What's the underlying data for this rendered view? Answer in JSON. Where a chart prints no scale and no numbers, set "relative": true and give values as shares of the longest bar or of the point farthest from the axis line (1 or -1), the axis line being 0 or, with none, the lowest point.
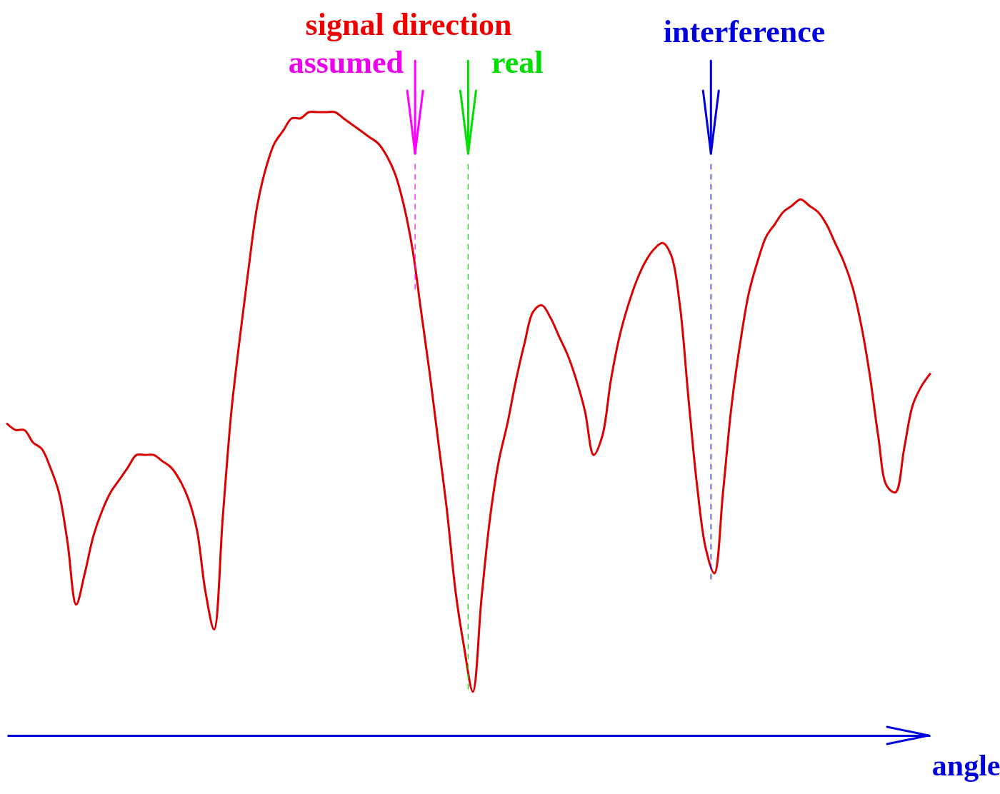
{
  "chart_data": {
    "type": "line",
    "relative": true,
    "xlabel": "angle",
    "annotations": [
      "signal direction",
      "assumed",
      "real",
      "interference"
    ],
    "categories": [
      null,
      null,
      null,
      null,
      null,
      null,
      null,
      null,
      null,
      null,
      null,
      null,
      null,
      null,
      null,
      null,
      null,
      null,
      null,
      null,
      null,
      null,
      null,
      null,
      null,
      null,
      null,
      null,
      null,
      null,
      null,
      null,
      null,
      null,
      null,
      null,
      null,
      null,
      null,
      null,
      null,
      null,
      null,
      null,
      null,
      null,
      null,
      null,
      null,
      null,
      null,
      null,
      null,
      null,
      null,
      null,
      null,
      null,
      null,
      null,
      null,
      null,
      null,
      null,
      null,
      null,
      null,
      null,
      null,
      null,
      null,
      null,
      null,
      null,
      null,
      null,
      null,
      null,
      null,
      null,
      null,
      null,
      null,
      null,
      null,
      null,
      null,
      null,
      null,
      null,
      null,
      null,
      null,
      null,
      null,
      null,
      null,
      null,
      null,
      null,
      null,
      null,
      null,
      null,
      null,
      null,
      null,
      null
    ],
    "series": [
      {
        "color": "#dd0000",
        "values": [
          0.5,
          0.49,
          0.49,
          0.47,
          0.46,
          0.43,
          0.39,
          0.31,
          0.21,
          0.26,
          0.32,
          0.36,
          0.39,
          0.41,
          0.43,
          0.45,
          0.45,
          0.45,
          0.44,
          0.43,
          0.41,
          0.38,
          0.33,
          0.23,
          0.17,
          0.35,
          0.52,
          0.64,
          0.75,
          0.85,
          0.91,
          0.95,
          0.97,
          0.99,
          0.99,
          1.0,
          1.0,
          1.0,
          1.0,
          0.99,
          0.98,
          0.97,
          0.96,
          0.95,
          0.93,
          0.9,
          0.85,
          0.78,
          0.68,
          0.58,
          0.47,
          0.36,
          0.23,
          0.14,
          0.07,
          0.22,
          0.35,
          0.44,
          0.5,
          0.57,
          0.63,
          0.68,
          0.69,
          0.67,
          0.64,
          0.61,
          0.57,
          0.52,
          0.45,
          0.48,
          0.57,
          0.64,
          0.69,
          0.73,
          0.76,
          0.78,
          0.79,
          0.77,
          0.69,
          0.54,
          0.4,
          0.3,
          0.26,
          0.39,
          0.53,
          0.63,
          0.71,
          0.76,
          0.8,
          0.82,
          0.84,
          0.85,
          0.86,
          0.85,
          0.84,
          0.82,
          0.79,
          0.76,
          0.72,
          0.66,
          0.58,
          0.48,
          0.4,
          0.39,
          0.46,
          0.53,
          0.56,
          0.58
        ]
      }
    ],
    "marker": "none",
    "line_style": "solid"
  }
}
